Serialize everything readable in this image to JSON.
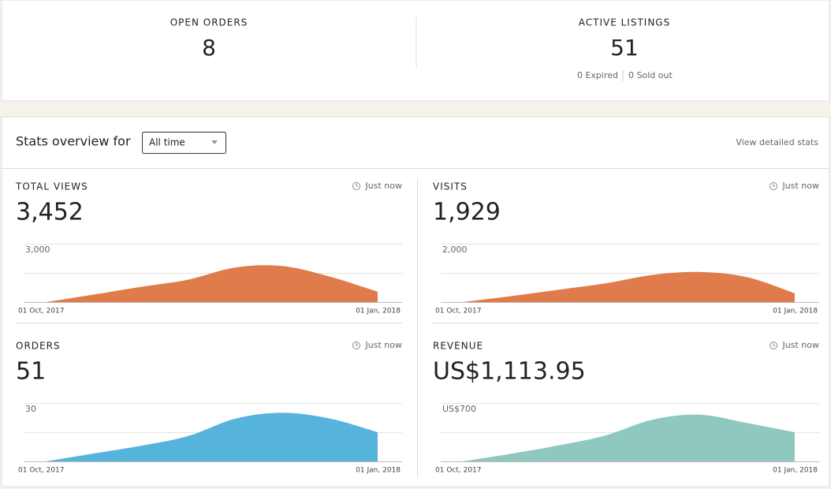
{
  "summary": [
    {
      "label": "OPEN ORDERS",
      "value": 8
    },
    {
      "label": "ACTIVE LISTINGS",
      "value": 51,
      "details": [
        "0 Expired",
        "0 Sold out"
      ]
    }
  ],
  "stats": {
    "title": "Stats overview for",
    "period": "All time",
    "link": "View detailed stats"
  },
  "chart_data": [
    {
      "type": "area",
      "title": "TOTAL VIEWS",
      "updated": "Just now",
      "total": "3,452",
      "categories": [
        "01 Oct, 2017",
        null,
        null,
        null,
        null,
        null,
        null,
        "01 Jan, 2018"
      ],
      "values": [
        0,
        380,
        780,
        1150,
        1780,
        1850,
        1300,
        530
      ],
      "color": "#e07b4b",
      "ylim": [
        0,
        3000
      ],
      "yticks": [
        {
          "value": 3000,
          "label": "3,000"
        }
      ],
      "grid_lines": [
        0,
        1500,
        3000
      ]
    },
    {
      "type": "area",
      "title": "VISITS",
      "updated": "Just now",
      "total": "1,929",
      "categories": [
        "01 Oct, 2017",
        null,
        null,
        null,
        null,
        null,
        null,
        "01 Jan, 2018"
      ],
      "values": [
        0,
        200,
        420,
        640,
        930,
        1030,
        850,
        300
      ],
      "color": "#e07b4b",
      "ylim": [
        0,
        2000
      ],
      "yticks": [
        {
          "value": 2000,
          "label": "2,000"
        }
      ],
      "grid_lines": [
        0,
        1000,
        2000
      ]
    },
    {
      "type": "area",
      "title": "ORDERS",
      "updated": "Just now",
      "total": "51",
      "categories": [
        "01 Oct, 2017",
        null,
        null,
        null,
        null,
        null,
        null,
        "01 Jan, 2018"
      ],
      "values": [
        0,
        4,
        8,
        13,
        22,
        25,
        22,
        15
      ],
      "color": "#56b3dc",
      "ylim": [
        0,
        30
      ],
      "yticks": [
        30
      ],
      "grid_lines": [
        0,
        15,
        30
      ]
    },
    {
      "type": "area",
      "title": "REVENUE",
      "updated": "Just now",
      "total": "US$1,113.95",
      "categories": [
        "01 Oct, 2017",
        null,
        null,
        null,
        null,
        null,
        null,
        "01 Jan, 2018"
      ],
      "values": [
        0,
        90,
        190,
        310,
        500,
        560,
        460,
        350
      ],
      "color": "#8fc8bf",
      "ylim": [
        0,
        700
      ],
      "yticks": [
        {
          "value": 700,
          "label": "US$700"
        }
      ],
      "grid_lines": [
        0,
        350,
        700
      ]
    }
  ]
}
